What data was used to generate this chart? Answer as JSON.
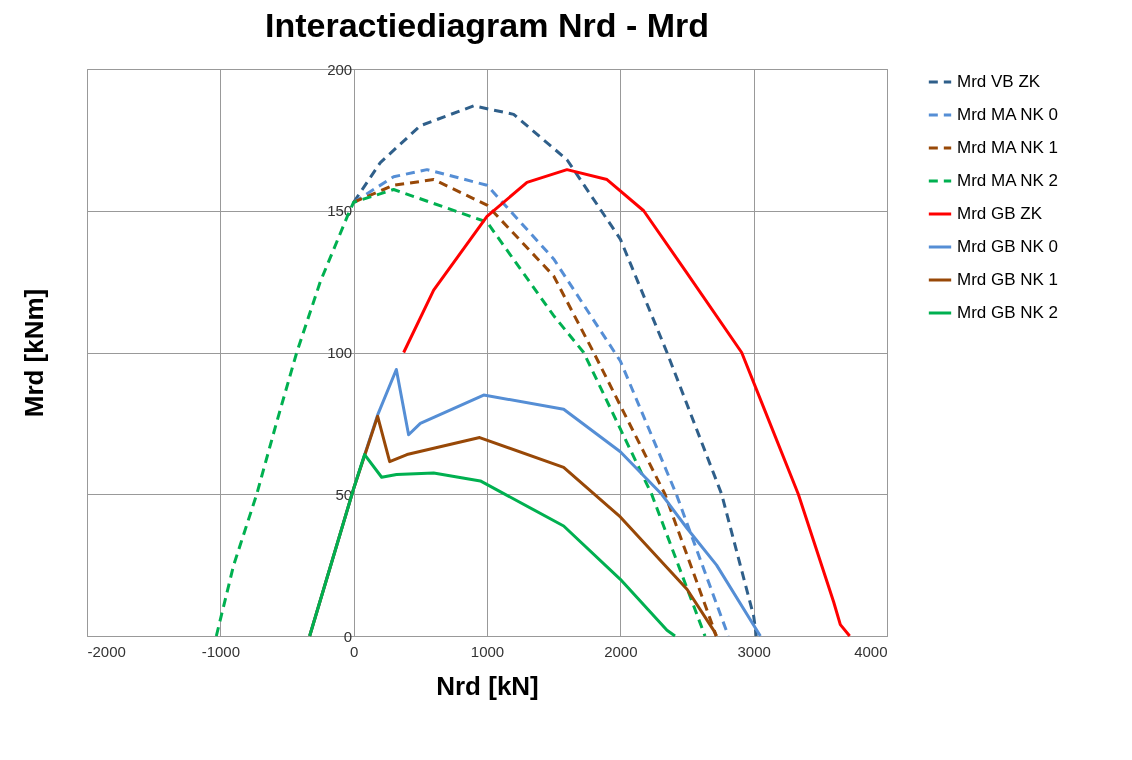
{
  "chart_data": {
    "type": "line",
    "title": "Interactiediagram Nrd - Mrd",
    "xlabel": "Nrd [kN]",
    "ylabel": "Mrd  [kNm]",
    "xlim": [
      -2000,
      4000
    ],
    "xticks": [
      -2000,
      -1000,
      0,
      1000,
      2000,
      3000,
      4000
    ],
    "ylim": [
      0,
      200
    ],
    "yticks": [
      0,
      50,
      100,
      150,
      200
    ],
    "grid": true,
    "legend": "right",
    "series": [
      {
        "name": "Mrd VB ZK",
        "color": "#2f5f8a",
        "line_style": "dashed",
        "x": [
          0,
          200,
          500,
          900,
          1200,
          1600,
          2000,
          2350,
          2760,
          3000,
          3020
        ],
        "values": [
          153,
          167,
          180,
          187,
          184,
          168,
          140,
          100,
          50,
          7,
          0
        ]
      },
      {
        "name": "Mrd MA NK 0",
        "color": "#558ed5",
        "line_style": "dashed",
        "x": [
          0,
          300,
          550,
          1000,
          1500,
          2000,
          2420,
          2810
        ],
        "values": [
          153,
          162,
          164.5,
          159,
          133,
          97,
          50,
          0
        ]
      },
      {
        "name": "Mrd MA NK 1",
        "color": "#984807",
        "line_style": "dashed",
        "x": [
          0,
          300,
          600,
          1000,
          1500,
          1800,
          2335,
          2720
        ],
        "values": [
          153,
          159,
          161,
          152,
          127,
          100,
          50,
          0
        ]
      },
      {
        "name": "Mrd MA NK 2",
        "color": "#00b050",
        "line_style": "dashed",
        "x": [
          -1030,
          -900,
          -727,
          -580,
          -427,
          -250,
          -30,
          0,
          300,
          1000,
          1500,
          1725,
          2235,
          2635
        ],
        "values": [
          0,
          25,
          50,
          75,
          100,
          125,
          150,
          153,
          157.5,
          146,
          113,
          100,
          50,
          0
        ]
      },
      {
        "name": "Mrd GB ZK",
        "color": "#ff0000",
        "line_style": "solid",
        "x": [
          375,
          600,
          1000,
          1300,
          1600,
          1900,
          2175,
          2500,
          2910,
          3335,
          3600,
          3650,
          3720
        ],
        "values": [
          100,
          122,
          148,
          160,
          164.5,
          161,
          150,
          128,
          100,
          50,
          12,
          4,
          0
        ]
      },
      {
        "name": "Mrd GB NK 0",
        "color": "#558ed5",
        "line_style": "solid",
        "x": [
          -330,
          0,
          180,
          320,
          412,
          500,
          975,
          1575,
          2000,
          2310,
          2500,
          2722,
          3050
        ],
        "values": [
          0,
          52,
          78,
          94,
          71,
          75,
          85,
          80,
          65,
          50,
          38,
          25,
          0
        ]
      },
      {
        "name": "Mrd GB NK 1",
        "color": "#984807",
        "line_style": "solid",
        "x": [
          -330,
          0,
          180,
          270,
          400,
          945,
          1575,
          2000,
          2500,
          2700,
          2720
        ],
        "values": [
          0,
          52,
          77.5,
          61.5,
          64,
          70,
          59.5,
          42,
          16.5,
          2,
          0
        ]
      },
      {
        "name": "Mrd GB NK 2",
        "color": "#00b050",
        "line_style": "solid",
        "x": [
          -330,
          0,
          82,
          210,
          322,
          600,
          950,
          1575,
          2000,
          2350,
          2410
        ],
        "values": [
          0,
          52,
          64,
          56,
          57,
          57.5,
          54.7,
          38.8,
          20,
          2,
          0
        ]
      }
    ]
  }
}
